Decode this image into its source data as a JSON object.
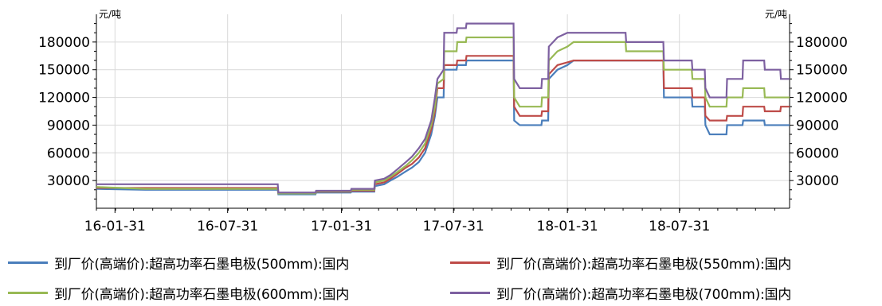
{
  "chart_data": {
    "type": "line",
    "title": "",
    "y_unit_left": "元/吨",
    "y_unit_right": "元/吨",
    "ylim": [
      0,
      210000
    ],
    "y_ticks": [
      30000,
      60000,
      90000,
      120000,
      150000,
      180000
    ],
    "y_tick_labels": [
      "30000",
      "60000",
      "90000",
      "120000",
      "150000",
      "180000"
    ],
    "x_range": [
      "2016-01-01",
      "2019-01-25"
    ],
    "x_ticks": [
      "2016-01-31",
      "2016-07-31",
      "2017-01-31",
      "2017-07-31",
      "2018-01-31",
      "2018-07-31"
    ],
    "x_tick_labels": [
      "16-01-31",
      "16-07-31",
      "17-01-31",
      "17-07-31",
      "18-01-31",
      "18-07-31"
    ],
    "grid": true,
    "legend_position": "bottom",
    "series": [
      {
        "name": "到厂价(高端价):超高功率石墨电极(500mm):国内",
        "color": "#4a7ebb",
        "points": [
          [
            "2016-01-01",
            21000
          ],
          [
            "2016-03-20",
            20000
          ],
          [
            "2016-10-20",
            20000
          ],
          [
            "2016-10-21",
            15000
          ],
          [
            "2016-12-20",
            15000
          ],
          [
            "2016-12-21",
            17000
          ],
          [
            "2017-02-15",
            17000
          ],
          [
            "2017-02-16",
            18000
          ],
          [
            "2017-03-25",
            18000
          ],
          [
            "2017-03-26",
            24000
          ],
          [
            "2017-04-10",
            26000
          ],
          [
            "2017-04-20",
            30000
          ],
          [
            "2017-05-01",
            34000
          ],
          [
            "2017-05-15",
            40000
          ],
          [
            "2017-05-25",
            44000
          ],
          [
            "2017-06-05",
            50000
          ],
          [
            "2017-06-15",
            60000
          ],
          [
            "2017-06-25",
            80000
          ],
          [
            "2017-07-01",
            100000
          ],
          [
            "2017-07-05",
            120000
          ],
          [
            "2017-07-15",
            120000
          ],
          [
            "2017-07-16",
            150000
          ],
          [
            "2017-08-05",
            150000
          ],
          [
            "2017-08-06",
            155000
          ],
          [
            "2017-08-20",
            155000
          ],
          [
            "2017-08-21",
            160000
          ],
          [
            "2017-11-05",
            160000
          ],
          [
            "2017-11-06",
            95000
          ],
          [
            "2017-11-15",
            90000
          ],
          [
            "2017-12-20",
            90000
          ],
          [
            "2017-12-21",
            95000
          ],
          [
            "2017-12-31",
            95000
          ],
          [
            "2018-01-01",
            140000
          ],
          [
            "2018-01-15",
            150000
          ],
          [
            "2018-01-31",
            155000
          ],
          [
            "2018-02-10",
            160000
          ],
          [
            "2018-07-05",
            160000
          ],
          [
            "2018-07-06",
            120000
          ],
          [
            "2018-08-20",
            120000
          ],
          [
            "2018-08-21",
            110000
          ],
          [
            "2018-09-10",
            110000
          ],
          [
            "2018-09-11",
            90000
          ],
          [
            "2018-09-18",
            80000
          ],
          [
            "2018-10-15",
            80000
          ],
          [
            "2018-10-16",
            90000
          ],
          [
            "2018-11-10",
            90000
          ],
          [
            "2018-11-11",
            95000
          ],
          [
            "2018-12-15",
            95000
          ],
          [
            "2018-12-16",
            90000
          ],
          [
            "2019-01-25",
            90000
          ]
        ]
      },
      {
        "name": "到厂价(高端价):超高功率石墨电极(550mm):国内",
        "color": "#be4b48",
        "points": [
          [
            "2016-01-01",
            22000
          ],
          [
            "2016-03-20",
            22000
          ],
          [
            "2016-10-20",
            22000
          ],
          [
            "2016-10-21",
            16000
          ],
          [
            "2016-12-20",
            16000
          ],
          [
            "2016-12-21",
            18000
          ],
          [
            "2017-02-15",
            18000
          ],
          [
            "2017-02-16",
            19000
          ],
          [
            "2017-03-25",
            19000
          ],
          [
            "2017-03-26",
            26000
          ],
          [
            "2017-04-10",
            28000
          ],
          [
            "2017-04-20",
            32000
          ],
          [
            "2017-05-01",
            37000
          ],
          [
            "2017-05-15",
            44000
          ],
          [
            "2017-05-25",
            48000
          ],
          [
            "2017-06-05",
            55000
          ],
          [
            "2017-06-15",
            65000
          ],
          [
            "2017-06-25",
            85000
          ],
          [
            "2017-07-01",
            105000
          ],
          [
            "2017-07-05",
            130000
          ],
          [
            "2017-07-15",
            130000
          ],
          [
            "2017-07-16",
            155000
          ],
          [
            "2017-08-05",
            155000
          ],
          [
            "2017-08-06",
            160000
          ],
          [
            "2017-08-20",
            160000
          ],
          [
            "2017-08-21",
            165000
          ],
          [
            "2017-11-05",
            165000
          ],
          [
            "2017-11-06",
            110000
          ],
          [
            "2017-11-15",
            100000
          ],
          [
            "2017-12-20",
            100000
          ],
          [
            "2017-12-21",
            105000
          ],
          [
            "2017-12-31",
            105000
          ],
          [
            "2018-01-01",
            145000
          ],
          [
            "2018-01-15",
            155000
          ],
          [
            "2018-01-31",
            158000
          ],
          [
            "2018-02-10",
            160000
          ],
          [
            "2018-07-05",
            160000
          ],
          [
            "2018-07-06",
            130000
          ],
          [
            "2018-08-20",
            130000
          ],
          [
            "2018-08-21",
            120000
          ],
          [
            "2018-09-10",
            120000
          ],
          [
            "2018-09-11",
            100000
          ],
          [
            "2018-09-18",
            95000
          ],
          [
            "2018-10-15",
            95000
          ],
          [
            "2018-10-16",
            100000
          ],
          [
            "2018-11-10",
            100000
          ],
          [
            "2018-11-11",
            110000
          ],
          [
            "2018-12-15",
            110000
          ],
          [
            "2018-12-16",
            105000
          ],
          [
            "2019-01-10",
            105000
          ],
          [
            "2019-01-11",
            110000
          ],
          [
            "2019-01-25",
            110000
          ]
        ]
      },
      {
        "name": "到厂价(高端价):超高功率石墨电极(600mm):国内",
        "color": "#98b954",
        "points": [
          [
            "2016-01-01",
            23000
          ],
          [
            "2016-03-20",
            21000
          ],
          [
            "2016-10-20",
            21000
          ],
          [
            "2016-10-21",
            16000
          ],
          [
            "2016-12-20",
            16000
          ],
          [
            "2016-12-21",
            18500
          ],
          [
            "2017-02-15",
            18500
          ],
          [
            "2017-02-16",
            20000
          ],
          [
            "2017-03-25",
            20000
          ],
          [
            "2017-03-26",
            28000
          ],
          [
            "2017-04-10",
            30000
          ],
          [
            "2017-04-20",
            34000
          ],
          [
            "2017-05-01",
            39000
          ],
          [
            "2017-05-15",
            46000
          ],
          [
            "2017-05-25",
            52000
          ],
          [
            "2017-06-05",
            60000
          ],
          [
            "2017-06-15",
            70000
          ],
          [
            "2017-06-25",
            90000
          ],
          [
            "2017-07-01",
            110000
          ],
          [
            "2017-07-05",
            135000
          ],
          [
            "2017-07-15",
            140000
          ],
          [
            "2017-07-16",
            170000
          ],
          [
            "2017-08-05",
            170000
          ],
          [
            "2017-08-06",
            180000
          ],
          [
            "2017-08-20",
            180000
          ],
          [
            "2017-08-21",
            185000
          ],
          [
            "2017-11-05",
            185000
          ],
          [
            "2017-11-06",
            120000
          ],
          [
            "2017-11-15",
            110000
          ],
          [
            "2017-12-20",
            110000
          ],
          [
            "2017-12-21",
            120000
          ],
          [
            "2017-12-31",
            120000
          ],
          [
            "2018-01-01",
            160000
          ],
          [
            "2018-01-15",
            170000
          ],
          [
            "2018-01-31",
            175000
          ],
          [
            "2018-02-10",
            180000
          ],
          [
            "2018-05-05",
            180000
          ],
          [
            "2018-05-06",
            170000
          ],
          [
            "2018-07-05",
            170000
          ],
          [
            "2018-07-06",
            150000
          ],
          [
            "2018-08-20",
            150000
          ],
          [
            "2018-08-21",
            140000
          ],
          [
            "2018-09-10",
            140000
          ],
          [
            "2018-09-11",
            120000
          ],
          [
            "2018-09-18",
            110000
          ],
          [
            "2018-10-15",
            110000
          ],
          [
            "2018-10-16",
            120000
          ],
          [
            "2018-11-10",
            120000
          ],
          [
            "2018-11-11",
            130000
          ],
          [
            "2018-12-15",
            130000
          ],
          [
            "2018-12-16",
            120000
          ],
          [
            "2019-01-25",
            120000
          ]
        ]
      },
      {
        "name": "到厂价(高端价):超高功率石墨电极(700mm):国内",
        "color": "#7d60a0",
        "points": [
          [
            "2016-01-01",
            26000
          ],
          [
            "2016-03-20",
            26000
          ],
          [
            "2016-10-20",
            26000
          ],
          [
            "2016-10-21",
            17000
          ],
          [
            "2016-12-20",
            17000
          ],
          [
            "2016-12-21",
            19000
          ],
          [
            "2017-02-15",
            19000
          ],
          [
            "2017-02-16",
            21000
          ],
          [
            "2017-03-25",
            21000
          ],
          [
            "2017-03-26",
            30000
          ],
          [
            "2017-04-10",
            32000
          ],
          [
            "2017-04-20",
            36000
          ],
          [
            "2017-05-01",
            42000
          ],
          [
            "2017-05-15",
            50000
          ],
          [
            "2017-05-25",
            56000
          ],
          [
            "2017-06-05",
            65000
          ],
          [
            "2017-06-15",
            75000
          ],
          [
            "2017-06-25",
            95000
          ],
          [
            "2017-07-01",
            120000
          ],
          [
            "2017-07-05",
            140000
          ],
          [
            "2017-07-15",
            150000
          ],
          [
            "2017-07-16",
            190000
          ],
          [
            "2017-08-05",
            190000
          ],
          [
            "2017-08-06",
            195000
          ],
          [
            "2017-08-20",
            195000
          ],
          [
            "2017-08-21",
            200000
          ],
          [
            "2017-11-05",
            200000
          ],
          [
            "2017-11-06",
            140000
          ],
          [
            "2017-11-15",
            130000
          ],
          [
            "2017-12-20",
            130000
          ],
          [
            "2017-12-21",
            140000
          ],
          [
            "2017-12-31",
            140000
          ],
          [
            "2018-01-01",
            175000
          ],
          [
            "2018-01-15",
            185000
          ],
          [
            "2018-01-31",
            190000
          ],
          [
            "2018-02-10",
            190000
          ],
          [
            "2018-05-05",
            190000
          ],
          [
            "2018-05-06",
            180000
          ],
          [
            "2018-07-05",
            180000
          ],
          [
            "2018-07-06",
            160000
          ],
          [
            "2018-08-20",
            160000
          ],
          [
            "2018-08-21",
            150000
          ],
          [
            "2018-09-10",
            150000
          ],
          [
            "2018-09-11",
            130000
          ],
          [
            "2018-09-18",
            120000
          ],
          [
            "2018-10-15",
            120000
          ],
          [
            "2018-10-16",
            140000
          ],
          [
            "2018-11-10",
            140000
          ],
          [
            "2018-11-11",
            160000
          ],
          [
            "2018-12-15",
            160000
          ],
          [
            "2018-12-16",
            150000
          ],
          [
            "2019-01-10",
            150000
          ],
          [
            "2019-01-11",
            140000
          ],
          [
            "2019-01-25",
            140000
          ]
        ]
      }
    ]
  }
}
